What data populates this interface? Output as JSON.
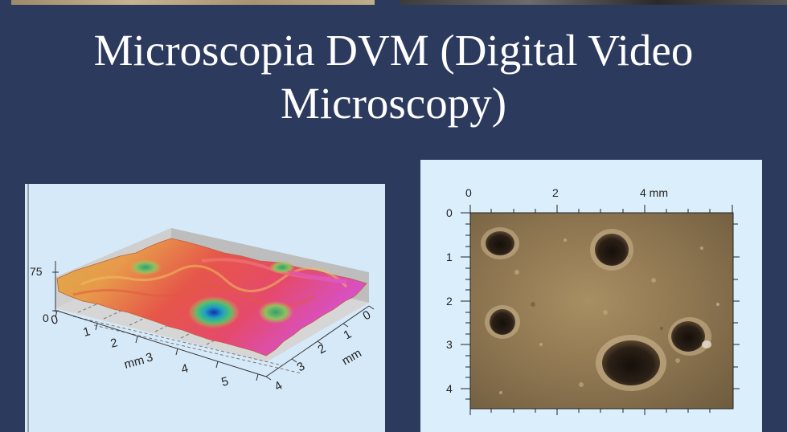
{
  "slide": {
    "title_line1": "Microscopia DVM (Digital Video",
    "title_line2": "Microscopy)"
  },
  "surface_plot": {
    "z_ticks": [
      "0",
      "75"
    ],
    "x_ticks": [
      "0",
      "1",
      "2",
      "3",
      "4",
      "5"
    ],
    "x_unit": "mm",
    "y_ticks": [
      "0",
      "1",
      "2",
      "3",
      "4"
    ],
    "y_unit": "mm"
  },
  "micrograph": {
    "x_ticks": [
      "0",
      "2",
      "4 mm"
    ],
    "y_ticks": [
      "0",
      "1",
      "2",
      "3",
      "4"
    ]
  }
}
